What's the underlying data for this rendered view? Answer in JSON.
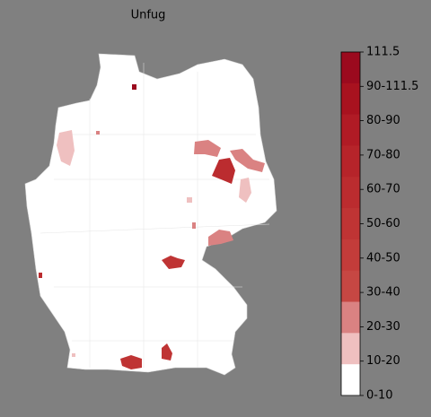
{
  "title": "Unfug",
  "colorbar": {
    "labels": [
      "111.5",
      "90-111.5",
      "80-90",
      "70-80",
      "60-70",
      "50-60",
      "40-50",
      "30-40",
      "20-30",
      "10-20",
      "0-10"
    ],
    "colors": [
      "#9b0a1e",
      "#a8121f",
      "#b01b25",
      "#b6242a",
      "#bb2c2f",
      "#bf3434",
      "#c33c3a",
      "#c64743",
      "#da8282",
      "#efc0c0",
      "#ffffff"
    ]
  }
}
